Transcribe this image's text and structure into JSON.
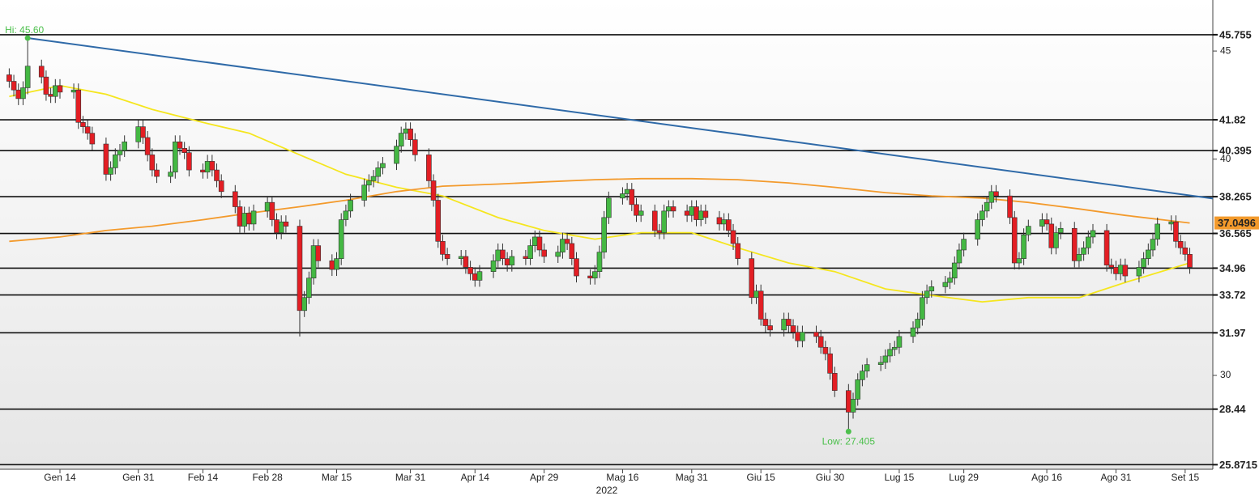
{
  "chart_data": {
    "type": "candlestick",
    "x": [
      "2022-01-03",
      "2022-01-04",
      "2022-01-05",
      "2022-01-06",
      "2022-01-07",
      "2022-01-10",
      "2022-01-11",
      "2022-01-12",
      "2022-01-13",
      "2022-01-14",
      "2022-01-17",
      "2022-01-18",
      "2022-01-19",
      "2022-01-20",
      "2022-01-21",
      "2022-01-24",
      "2022-01-25",
      "2022-01-26",
      "2022-01-27",
      "2022-01-28",
      "2022-01-31",
      "2022-02-01",
      "2022-02-02",
      "2022-02-03",
      "2022-02-04",
      "2022-02-07",
      "2022-02-08",
      "2022-02-09",
      "2022-02-10",
      "2022-02-11",
      "2022-02-14",
      "2022-02-15",
      "2022-02-16",
      "2022-02-17",
      "2022-02-18",
      "2022-02-21",
      "2022-02-22",
      "2022-02-23",
      "2022-02-24",
      "2022-02-25",
      "2022-02-28",
      "2022-03-01",
      "2022-03-02",
      "2022-03-03",
      "2022-03-04",
      "2022-03-07",
      "2022-03-08",
      "2022-03-09",
      "2022-03-10",
      "2022-03-11",
      "2022-03-14",
      "2022-03-15",
      "2022-03-16",
      "2022-03-17",
      "2022-03-18",
      "2022-03-21",
      "2022-03-22",
      "2022-03-23",
      "2022-03-24",
      "2022-03-25",
      "2022-03-28",
      "2022-03-29",
      "2022-03-30",
      "2022-03-31",
      "2022-04-01",
      "2022-04-04",
      "2022-04-05",
      "2022-04-06",
      "2022-04-07",
      "2022-04-08",
      "2022-04-11",
      "2022-04-12",
      "2022-04-13",
      "2022-04-14",
      "2022-04-15",
      "2022-04-18",
      "2022-04-19",
      "2022-04-20",
      "2022-04-21",
      "2022-04-22",
      "2022-04-25",
      "2022-04-26",
      "2022-04-27",
      "2022-04-28",
      "2022-04-29",
      "2022-05-02",
      "2022-05-03",
      "2022-05-04",
      "2022-05-05",
      "2022-05-06",
      "2022-05-09",
      "2022-05-10",
      "2022-05-11",
      "2022-05-12",
      "2022-05-13",
      "2022-05-16",
      "2022-05-17",
      "2022-05-18",
      "2022-05-19",
      "2022-05-20",
      "2022-05-23",
      "2022-05-24",
      "2022-05-25",
      "2022-05-26",
      "2022-05-27",
      "2022-05-30",
      "2022-05-31",
      "2022-06-01",
      "2022-06-02",
      "2022-06-03",
      "2022-06-06",
      "2022-06-07",
      "2022-06-08",
      "2022-06-09",
      "2022-06-10",
      "2022-06-13",
      "2022-06-14",
      "2022-06-15",
      "2022-06-16",
      "2022-06-17",
      "2022-06-20",
      "2022-06-21",
      "2022-06-22",
      "2022-06-23",
      "2022-06-24",
      "2022-06-27",
      "2022-06-28",
      "2022-06-29",
      "2022-06-30",
      "2022-07-01",
      "2022-07-04",
      "2022-07-05",
      "2022-07-06",
      "2022-07-07",
      "2022-07-08",
      "2022-07-11",
      "2022-07-12",
      "2022-07-13",
      "2022-07-14",
      "2022-07-15",
      "2022-07-18",
      "2022-07-19",
      "2022-07-20",
      "2022-07-21",
      "2022-07-22",
      "2022-07-25",
      "2022-07-26",
      "2022-07-27",
      "2022-07-28",
      "2022-07-29",
      "2022-08-01",
      "2022-08-02",
      "2022-08-03",
      "2022-08-04",
      "2022-08-05",
      "2022-08-08",
      "2022-08-09",
      "2022-08-10",
      "2022-08-11",
      "2022-08-12",
      "2022-08-15",
      "2022-08-16",
      "2022-08-17",
      "2022-08-18",
      "2022-08-19",
      "2022-08-22",
      "2022-08-23",
      "2022-08-24",
      "2022-08-25",
      "2022-08-26",
      "2022-08-29",
      "2022-08-30",
      "2022-08-31",
      "2022-09-01",
      "2022-09-02",
      "2022-09-05",
      "2022-09-06",
      "2022-09-07",
      "2022-09-08",
      "2022-09-09",
      "2022-09-12",
      "2022-09-13",
      "2022-09-14",
      "2022-09-15",
      "2022-09-16"
    ],
    "open": [
      43.9,
      43.6,
      43.2,
      42.8,
      43.3,
      44.3,
      43.8,
      43.0,
      42.9,
      43.4,
      43.1,
      43.2,
      41.7,
      41.5,
      41.2,
      40.7,
      39.3,
      39.6,
      40.2,
      40.4,
      40.8,
      41.5,
      41.0,
      40.2,
      39.5,
      39.2,
      39.4,
      40.8,
      40.5,
      40.3,
      39.5,
      39.4,
      39.9,
      39.5,
      39.0,
      38.5,
      37.8,
      36.9,
      37.5,
      37.0,
      37.6,
      38.0,
      37.2,
      36.6,
      37.1,
      36.9,
      33.0,
      33.6,
      34.5,
      36.0,
      35.3,
      34.9,
      35.4,
      37.2,
      37.6,
      38.1,
      38.8,
      39.0,
      39.2,
      39.6,
      39.8,
      40.6,
      41.2,
      41.4,
      40.9,
      40.2,
      39.0,
      38.1,
      36.2,
      35.6,
      35.4,
      35.5,
      35.0,
      34.7,
      34.4,
      34.8,
      35.3,
      35.8,
      35.4,
      35.1,
      35.5,
      35.4,
      36.0,
      36.4,
      35.8,
      35.5,
      35.7,
      36.3,
      36.1,
      35.4,
      34.6,
      34.5,
      34.8,
      35.7,
      37.3,
      38.2,
      38.4,
      38.6,
      37.9,
      37.4,
      37.6,
      36.7,
      36.6,
      37.6,
      37.8,
      37.6,
      37.4,
      37.8,
      37.2,
      37.6,
      37.3,
      37.0,
      37.2,
      36.7,
      36.1,
      35.4,
      33.6,
      33.9,
      32.6,
      32.3,
      32.1,
      32.6,
      32.3,
      32.0,
      31.6,
      32.0,
      31.8,
      31.3,
      31.0,
      30.1,
      29.3,
      28.3,
      28.9,
      29.8,
      30.2,
      30.5,
      30.6,
      30.9,
      31.2,
      31.3,
      31.8,
      32.2,
      32.6,
      33.6,
      33.9,
      34.1,
      34.3,
      34.5,
      35.2,
      35.8,
      36.3,
      37.2,
      37.6,
      38.0,
      38.5,
      38.3,
      37.3,
      35.2,
      35.4,
      36.5,
      36.9,
      37.2,
      37.0,
      35.9,
      36.6,
      36.8,
      35.3,
      35.6,
      35.9,
      36.4,
      36.7,
      35.1,
      35.0,
      34.7,
      35.1,
      34.6,
      35.0,
      35.4,
      35.8,
      36.3,
      37.0,
      37.1,
      36.2,
      35.9,
      35.6
    ],
    "high": [
      44.2,
      43.9,
      43.5,
      43.6,
      45.6,
      44.6,
      44.1,
      43.3,
      43.7,
      43.7,
      43.5,
      43.5,
      42.0,
      41.8,
      41.5,
      41.0,
      39.9,
      40.5,
      40.7,
      41.1,
      41.8,
      41.8,
      41.3,
      40.5,
      39.8,
      39.7,
      41.1,
      41.1,
      40.8,
      40.6,
      39.8,
      40.2,
      40.2,
      39.8,
      39.3,
      38.8,
      38.1,
      37.8,
      37.8,
      37.9,
      38.3,
      38.3,
      37.5,
      37.4,
      37.4,
      37.2,
      33.9,
      34.8,
      36.3,
      36.3,
      35.6,
      35.7,
      37.5,
      37.9,
      38.4,
      39.1,
      39.3,
      39.5,
      39.9,
      40.1,
      40.9,
      41.5,
      41.7,
      41.7,
      41.2,
      40.5,
      39.3,
      38.4,
      36.5,
      35.9,
      35.8,
      35.8,
      35.3,
      35.0,
      35.1,
      35.6,
      36.1,
      36.1,
      35.7,
      35.8,
      35.8,
      36.3,
      36.7,
      36.7,
      36.1,
      36.0,
      36.6,
      36.6,
      36.4,
      35.7,
      34.9,
      35.1,
      36.0,
      37.6,
      38.5,
      38.7,
      38.9,
      38.9,
      38.2,
      37.9,
      37.9,
      37.0,
      37.9,
      38.1,
      38.1,
      37.9,
      38.1,
      38.1,
      37.9,
      37.9,
      37.6,
      37.5,
      37.5,
      37.0,
      36.4,
      35.7,
      34.2,
      34.2,
      32.9,
      32.6,
      32.9,
      32.9,
      32.6,
      32.3,
      32.3,
      32.3,
      32.1,
      31.6,
      31.3,
      30.4,
      29.6,
      29.2,
      30.1,
      30.5,
      30.8,
      30.9,
      31.2,
      31.5,
      31.6,
      32.1,
      32.5,
      32.9,
      33.9,
      34.2,
      34.4,
      34.6,
      34.8,
      35.5,
      36.1,
      36.6,
      37.5,
      37.9,
      38.3,
      38.8,
      38.8,
      38.6,
      37.6,
      35.7,
      36.8,
      37.2,
      37.5,
      37.5,
      37.3,
      36.9,
      37.1,
      37.1,
      35.9,
      36.2,
      36.7,
      37.0,
      37.0,
      35.4,
      35.3,
      35.4,
      35.4,
      35.3,
      35.7,
      36.1,
      36.6,
      37.3,
      37.4,
      37.4,
      36.5,
      36.2,
      35.9
    ],
    "low": [
      43.3,
      42.9,
      42.5,
      42.5,
      43.0,
      43.5,
      42.7,
      42.6,
      42.6,
      42.8,
      42.8,
      41.4,
      41.2,
      40.9,
      40.4,
      39.0,
      39.0,
      39.3,
      39.9,
      40.1,
      40.5,
      40.7,
      39.9,
      39.2,
      38.9,
      38.9,
      39.1,
      40.2,
      40.0,
      39.2,
      39.1,
      39.1,
      39.2,
      38.7,
      38.2,
      37.5,
      36.6,
      36.6,
      36.7,
      36.7,
      37.3,
      36.9,
      36.3,
      36.3,
      36.6,
      31.8,
      32.7,
      33.3,
      34.2,
      35.0,
      34.6,
      34.6,
      35.1,
      36.9,
      37.3,
      37.8,
      38.5,
      38.7,
      38.9,
      39.3,
      39.5,
      40.3,
      40.9,
      40.6,
      39.9,
      38.7,
      37.8,
      35.9,
      35.3,
      35.1,
      35.1,
      34.7,
      34.4,
      34.1,
      34.1,
      34.5,
      35.0,
      35.1,
      34.8,
      34.8,
      35.1,
      35.1,
      35.7,
      35.5,
      35.2,
      35.2,
      35.4,
      35.8,
      35.1,
      34.3,
      34.2,
      34.2,
      34.5,
      35.4,
      37.0,
      37.9,
      38.1,
      37.6,
      37.1,
      37.1,
      36.4,
      36.3,
      36.3,
      37.3,
      37.3,
      37.1,
      37.1,
      36.9,
      36.9,
      37.0,
      36.7,
      36.7,
      36.4,
      35.8,
      35.1,
      33.3,
      33.3,
      32.3,
      32.0,
      31.8,
      31.8,
      32.0,
      31.7,
      31.3,
      31.3,
      31.5,
      31.0,
      30.7,
      29.8,
      29.0,
      27.405,
      28.0,
      28.6,
      29.5,
      29.9,
      30.2,
      30.3,
      30.6,
      30.9,
      31.0,
      31.5,
      31.9,
      32.3,
      33.3,
      33.6,
      33.8,
      34.0,
      34.2,
      34.9,
      35.5,
      36.0,
      36.9,
      37.3,
      37.7,
      38.0,
      37.0,
      34.9,
      34.9,
      35.1,
      36.2,
      36.6,
      36.7,
      35.6,
      35.6,
      36.3,
      35.0,
      35.0,
      35.3,
      35.6,
      36.1,
      34.8,
      34.7,
      34.4,
      34.4,
      34.3,
      34.3,
      34.7,
      35.1,
      35.5,
      36.0,
      36.7,
      35.9,
      35.6,
      35.3,
      34.7
    ],
    "close": [
      43.6,
      43.2,
      42.8,
      43.3,
      44.3,
      43.8,
      43.0,
      42.9,
      43.4,
      43.1,
      43.2,
      41.7,
      41.5,
      41.2,
      40.7,
      39.3,
      39.6,
      40.2,
      40.4,
      40.8,
      41.5,
      41.0,
      40.2,
      39.5,
      39.2,
      39.4,
      40.8,
      40.5,
      40.3,
      39.5,
      39.4,
      39.9,
      39.5,
      39.0,
      38.5,
      37.8,
      36.9,
      37.5,
      37.0,
      37.6,
      38.0,
      37.2,
      36.6,
      37.1,
      36.9,
      33.0,
      33.6,
      34.5,
      36.0,
      35.3,
      34.9,
      35.4,
      37.2,
      37.6,
      38.1,
      38.8,
      39.0,
      39.2,
      39.6,
      39.8,
      40.6,
      41.2,
      41.4,
      40.9,
      40.2,
      39.0,
      38.1,
      36.2,
      35.6,
      35.4,
      35.5,
      35.0,
      34.7,
      34.4,
      34.8,
      35.3,
      35.8,
      35.4,
      35.1,
      35.5,
      35.4,
      36.0,
      36.4,
      35.8,
      35.5,
      35.7,
      36.3,
      36.1,
      35.4,
      34.6,
      34.5,
      34.8,
      35.7,
      37.3,
      38.2,
      38.4,
      38.6,
      37.9,
      37.4,
      37.6,
      36.7,
      36.6,
      37.6,
      37.8,
      37.6,
      37.4,
      37.8,
      37.2,
      37.6,
      37.3,
      37.0,
      37.2,
      36.7,
      36.1,
      35.4,
      33.6,
      33.9,
      32.6,
      32.3,
      32.1,
      32.6,
      32.3,
      32.0,
      31.6,
      32.0,
      31.8,
      31.3,
      31.0,
      30.1,
      29.3,
      28.3,
      28.9,
      29.8,
      30.2,
      30.5,
      30.6,
      30.9,
      31.2,
      31.3,
      31.8,
      32.2,
      32.6,
      33.6,
      33.9,
      34.1,
      34.3,
      34.5,
      35.2,
      35.8,
      36.3,
      37.2,
      37.6,
      38.0,
      38.5,
      38.3,
      37.3,
      35.2,
      35.4,
      36.5,
      36.9,
      37.2,
      37.0,
      35.9,
      36.6,
      36.8,
      35.3,
      35.6,
      35.9,
      36.4,
      36.7,
      35.1,
      35.0,
      34.7,
      35.1,
      34.6,
      35.0,
      35.4,
      35.8,
      36.3,
      37.0,
      37.1,
      36.2,
      35.9,
      35.6,
      35.0
    ],
    "up_color": "#44b843",
    "down_color": "#e31e24",
    "overlays": [
      {
        "color": "#f5e61e",
        "x": [
          "2022-01-03",
          "2022-01-14",
          "2022-01-24",
          "2022-02-03",
          "2022-02-14",
          "2022-02-24",
          "2022-03-07",
          "2022-03-17",
          "2022-03-28",
          "2022-04-07",
          "2022-04-19",
          "2022-04-29",
          "2022-05-10",
          "2022-05-20",
          "2022-05-31",
          "2022-06-10",
          "2022-06-21",
          "2022-07-01",
          "2022-07-12",
          "2022-07-22",
          "2022-08-02",
          "2022-08-12",
          "2022-08-23",
          "2022-09-02",
          "2022-09-16"
        ],
        "values": [
          42.9,
          43.4,
          43.0,
          42.3,
          41.7,
          41.2,
          40.2,
          39.3,
          38.7,
          38.3,
          37.3,
          36.7,
          36.3,
          36.6,
          36.6,
          35.9,
          35.2,
          34.8,
          34.0,
          33.7,
          33.4,
          33.6,
          33.6,
          34.3,
          35.2
        ]
      },
      {
        "color": "#f39a2c",
        "label_value": 37.0496,
        "x": [
          "2022-01-03",
          "2022-01-14",
          "2022-01-24",
          "2022-02-03",
          "2022-02-14",
          "2022-02-24",
          "2022-03-07",
          "2022-03-17",
          "2022-03-28",
          "2022-04-07",
          "2022-04-19",
          "2022-04-29",
          "2022-05-10",
          "2022-05-20",
          "2022-05-31",
          "2022-06-10",
          "2022-06-21",
          "2022-07-01",
          "2022-07-12",
          "2022-07-22",
          "2022-08-02",
          "2022-08-12",
          "2022-08-23",
          "2022-09-02",
          "2022-09-16"
        ],
        "values": [
          36.2,
          36.4,
          36.7,
          36.9,
          37.2,
          37.5,
          37.8,
          38.1,
          38.5,
          38.75,
          38.85,
          38.95,
          39.05,
          39.1,
          39.1,
          39.05,
          38.9,
          38.7,
          38.45,
          38.3,
          38.2,
          38.0,
          37.7,
          37.4,
          37.05
        ]
      }
    ],
    "trendline": {
      "color": "#2f6aa8",
      "x": [
        "2022-01-07",
        "2022-09-21"
      ],
      "values": [
        45.6,
        38.18
      ]
    },
    "levels": [
      45.755,
      41.82,
      40.395,
      38.265,
      36.565,
      34.96,
      33.72,
      31.97,
      28.44,
      25.8715
    ],
    "annotations": [
      {
        "text": "Hi: 45.60",
        "x": "2022-01-07",
        "value": 45.6
      },
      {
        "text": "Low: 27.405",
        "x": "2022-07-04",
        "value": 27.405
      }
    ],
    "annotation_color": "#4cc04c",
    "xlim": [
      "2022-01-01",
      "2022-09-21"
    ],
    "xticks": [
      {
        "value": "2022-01-14",
        "label": "Gen 14"
      },
      {
        "value": "2022-01-31",
        "label": "Gen 31"
      },
      {
        "value": "2022-02-14",
        "label": "Feb 14"
      },
      {
        "value": "2022-02-28",
        "label": "Feb 28"
      },
      {
        "value": "2022-03-15",
        "label": "Mar 15"
      },
      {
        "value": "2022-03-31",
        "label": "Mar 31"
      },
      {
        "value": "2022-04-14",
        "label": "Apr 14"
      },
      {
        "value": "2022-04-29",
        "label": "Apr 29"
      },
      {
        "value": "2022-05-16",
        "label": "Mag 16"
      },
      {
        "value": "2022-05-31",
        "label": "Mag 31"
      },
      {
        "value": "2022-06-15",
        "label": "Giu 15"
      },
      {
        "value": "2022-06-30",
        "label": "Giu 30"
      },
      {
        "value": "2022-07-15",
        "label": "Lug 15"
      },
      {
        "value": "2022-07-29",
        "label": "Lug 29"
      },
      {
        "value": "2022-08-16",
        "label": "Ago 16"
      },
      {
        "value": "2022-08-31",
        "label": "Ago 31"
      },
      {
        "value": "2022-09-15",
        "label": "Set 15"
      }
    ],
    "year_label": "2022",
    "ylim": [
      25.66,
      47.36
    ],
    "yticks": [
      30,
      40,
      45
    ]
  }
}
